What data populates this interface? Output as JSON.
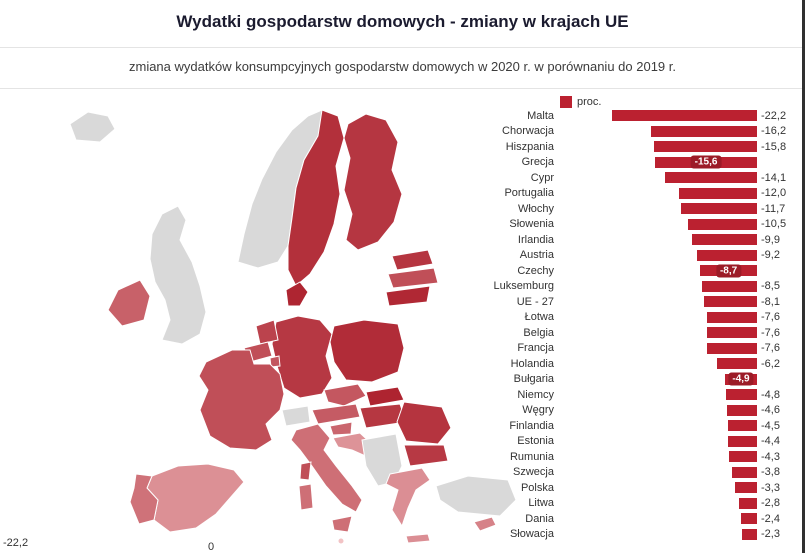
{
  "header": {
    "title": "Wydatki gospodarstw domowych - zmiany w krajach UE",
    "subtitle": "zmiana wydatków konsumpcyjnych gospodarstw domowych w 2020 r. w porównaniu do 2019 r."
  },
  "legend": {
    "label": "proc."
  },
  "map_legend": {
    "min_label": "-22,2",
    "zero_label": "0"
  },
  "colors": {
    "bar": "#bb2130",
    "badge_bg": "#9c1b27",
    "scale_dark": "#a6121f",
    "scale_light": "#f2c3c5",
    "non_eu": "#d9d9d9",
    "text": "#333333"
  },
  "chart_data": [
    {
      "type": "bar",
      "orientation": "horizontal",
      "zero_baseline": "right",
      "unit": "proc.",
      "xlim": [
        -22.2,
        0
      ],
      "legend": "proc.",
      "categories": [
        "Malta",
        "Chorwacja",
        "Hiszpania",
        "Grecja",
        "Cypr",
        "Portugalia",
        "Włochy",
        "Słowenia",
        "Irlandia",
        "Austria",
        "Czechy",
        "Luksemburg",
        "UE - 27",
        "Łotwa",
        "Belgia",
        "Francja",
        "Holandia",
        "Bułgaria",
        "Niemcy",
        "Węgry",
        "Finlandia",
        "Estonia",
        "Rumunia",
        "Szwecja",
        "Polska",
        "Litwa",
        "Dania",
        "Słowacja"
      ],
      "values": [
        -22.2,
        -16.2,
        -15.8,
        -15.6,
        -14.1,
        -12.0,
        -11.7,
        -10.5,
        -9.9,
        -9.2,
        -8.7,
        -8.5,
        -8.1,
        -7.6,
        -7.6,
        -7.6,
        -6.2,
        -4.9,
        -4.8,
        -4.6,
        -4.5,
        -4.4,
        -4.3,
        -3.8,
        -3.3,
        -2.8,
        -2.4,
        -2.3
      ],
      "value_labels": [
        "-22,2",
        "-16,2",
        "-15,8",
        "-15,6",
        "-14,1",
        "-12,0",
        "-11,7",
        "-10,5",
        "-9,9",
        "-9,2",
        "-8,7",
        "-8,5",
        "-8,1",
        "-7,6",
        "-7,6",
        "-7,6",
        "-6,2",
        "-4,9",
        "-4,8",
        "-4,6",
        "-4,5",
        "-4,4",
        "-4,3",
        "-3,8",
        "-3,3",
        "-2,8",
        "-2,4",
        "-2,3"
      ],
      "inline_label_indices": [
        3,
        10,
        17
      ]
    },
    {
      "type": "choropleth",
      "region": "Europa",
      "value_domain": [
        -22.2,
        0
      ],
      "domain_labels": [
        "-22,2",
        "0"
      ],
      "color_at_min": "#f2c3c5",
      "color_at_zero": "#a6121f",
      "non_eu_color": "#d9d9d9",
      "values_source": "chart_data[0]",
      "non_eu_regions": [
        "Islandia",
        "Norwegia",
        "Wielka Brytania",
        "Szwajcaria",
        "Bałkany Zachodnie",
        "Turcja"
      ]
    }
  ]
}
